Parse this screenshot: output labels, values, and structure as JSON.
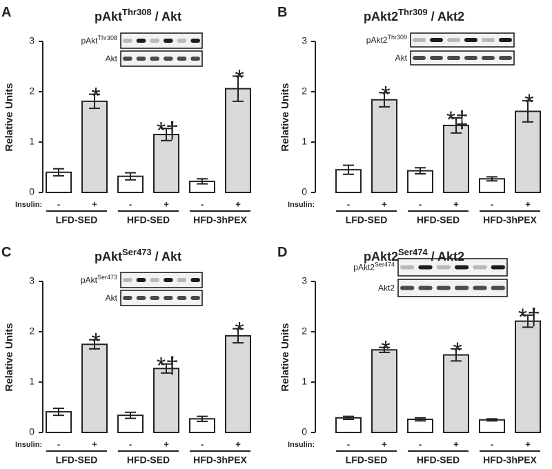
{
  "chart_data": [
    {
      "type": "bar",
      "panel": "A",
      "title": {
        "main": "pAkt",
        "sup": "Thr308",
        "rest": "/ Akt"
      },
      "blot": [
        {
          "main": "pAkt",
          "sup": "Thr308"
        },
        {
          "main": "Akt"
        }
      ],
      "ylabel": "Relative Units",
      "x_row_label": "Insulin:",
      "categories": [
        "-",
        "+",
        "-",
        "+",
        "-",
        "+"
      ],
      "groups": [
        "LFD-SED",
        "HFD-SED",
        "HFD-3hPEX"
      ],
      "values": [
        0.4,
        1.81,
        0.32,
        1.15,
        0.22,
        2.06
      ],
      "errors": [
        0.07,
        0.14,
        0.07,
        0.12,
        0.05,
        0.25
      ],
      "annotations": [
        null,
        "*",
        null,
        "*†",
        null,
        "*"
      ],
      "colors": [
        "#ffffff",
        "#d9d9d9",
        "#ffffff",
        "#d9d9d9",
        "#ffffff",
        "#d9d9d9"
      ],
      "ylim": [
        0,
        3
      ],
      "yticks": [
        0,
        1,
        2,
        3
      ]
    },
    {
      "type": "bar",
      "panel": "B",
      "title": {
        "main": "pAkt2",
        "sup": "Thr309",
        "rest": "/ Akt2"
      },
      "blot": [
        {
          "main": "pAkt2",
          "sup": "Thr309"
        },
        {
          "main": "Akt"
        }
      ],
      "ylabel": "Relative Units",
      "x_row_label": "Insulin:",
      "categories": [
        "-",
        "+",
        "-",
        "+",
        "-",
        "+"
      ],
      "groups": [
        "LFD-SED",
        "HFD-SED",
        "HFD-3hPEX"
      ],
      "values": [
        0.45,
        1.84,
        0.43,
        1.33,
        0.27,
        1.61
      ],
      "errors": [
        0.09,
        0.14,
        0.06,
        0.15,
        0.04,
        0.21
      ],
      "annotations": [
        null,
        "*",
        null,
        "*‡",
        null,
        "*"
      ],
      "colors": [
        "#ffffff",
        "#d9d9d9",
        "#ffffff",
        "#d9d9d9",
        "#ffffff",
        "#d9d9d9"
      ],
      "ylim": [
        0,
        3
      ],
      "yticks": [
        0,
        1,
        2,
        3
      ]
    },
    {
      "type": "bar",
      "panel": "C",
      "title": {
        "main": "pAkt",
        "sup": "Ser473",
        "rest": "/ Akt"
      },
      "blot": [
        {
          "main": "pAkt",
          "sup": "Ser473"
        },
        {
          "main": "Akt"
        }
      ],
      "ylabel": "Relative Units",
      "x_row_label": "Insulin:",
      "categories": [
        "-",
        "+",
        "-",
        "+",
        "-",
        "+"
      ],
      "groups": [
        "LFD-SED",
        "HFD-SED",
        "HFD-3hPEX"
      ],
      "values": [
        0.41,
        1.75,
        0.34,
        1.27,
        0.27,
        1.92
      ],
      "errors": [
        0.07,
        0.09,
        0.06,
        0.09,
        0.05,
        0.14
      ],
      "annotations": [
        null,
        "*",
        null,
        "*†",
        null,
        "*"
      ],
      "colors": [
        "#ffffff",
        "#d9d9d9",
        "#ffffff",
        "#d9d9d9",
        "#ffffff",
        "#d9d9d9"
      ],
      "ylim": [
        0,
        3
      ],
      "yticks": [
        0,
        1,
        2,
        3
      ]
    },
    {
      "type": "bar",
      "panel": "D",
      "title": {
        "main": "pAkt2",
        "sup": "Ser474",
        "rest": "/ Akt2"
      },
      "blot": [
        {
          "main": "pAkt2",
          "sup": "Ser474"
        },
        {
          "main": "Akt2"
        }
      ],
      "ylabel": "Relative Units",
      "x_row_label": "Insulin:",
      "categories": [
        "-",
        "+",
        "-",
        "+",
        "-",
        "+"
      ],
      "groups": [
        "LFD-SED",
        "HFD-SED",
        "HFD-3hPEX"
      ],
      "values": [
        0.29,
        1.64,
        0.26,
        1.54,
        0.25,
        2.21
      ],
      "errors": [
        0.03,
        0.05,
        0.03,
        0.12,
        0.02,
        0.12
      ],
      "annotations": [
        null,
        "*",
        null,
        "*",
        null,
        "*†"
      ],
      "colors": [
        "#ffffff",
        "#d9d9d9",
        "#ffffff",
        "#d9d9d9",
        "#ffffff",
        "#d9d9d9"
      ],
      "ylim": [
        0,
        3
      ],
      "yticks": [
        0,
        1,
        2,
        3
      ]
    }
  ]
}
